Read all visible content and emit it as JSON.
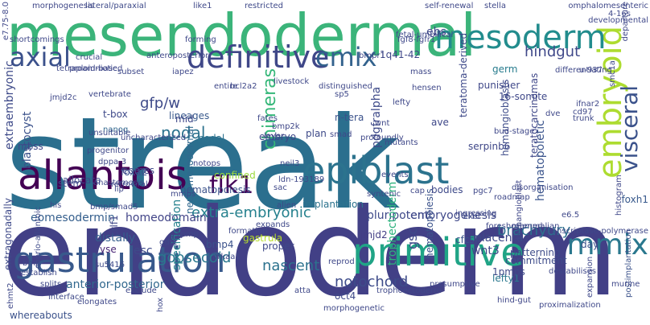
{
  "words": [
    {
      "text": "streak",
      "color": "#2b6f8e"
    },
    {
      "text": "endoderm",
      "color": "#424086"
    },
    {
      "text": "mesendodermal",
      "color": "#3bb47a"
    },
    {
      "text": "allantois",
      "color": "#440154"
    },
    {
      "text": "epiblast",
      "color": "#2c738e"
    },
    {
      "text": "primitive",
      "color": "#20a486"
    },
    {
      "text": "gastrulation",
      "color": "#38598c"
    },
    {
      "text": "definitive",
      "color": "#3f4788"
    },
    {
      "text": "embryoid",
      "color": "#addc30"
    },
    {
      "text": "visceral",
      "color": "#3b528b"
    },
    {
      "text": "mesoderm",
      "color": "#228c8d"
    },
    {
      "text": "axial",
      "color": "#3b518b"
    },
    {
      "text": "cmix",
      "color": "#33628d"
    },
    {
      "text": "flk1",
      "color": "#440256"
    },
    {
      "text": "mmix",
      "color": "#2a788e"
    },
    {
      "text": "nodal",
      "color": "#2c728e"
    },
    {
      "text": "gfp/w",
      "color": "#3e4a89"
    },
    {
      "text": "hindgut",
      "color": "#3f4889"
    },
    {
      "text": "extra-embryonic",
      "color": "#26818e"
    },
    {
      "text": "eomesodermin",
      "color": "#355f8d"
    },
    {
      "text": "homeodomain",
      "color": "#414487"
    },
    {
      "text": "goosecoid",
      "color": "#2a788e"
    },
    {
      "text": "nascent",
      "color": "#2c728e"
    },
    {
      "text": "notochord",
      "color": "#3e4c8a"
    },
    {
      "text": "anterior-posterior",
      "color": "#31688e"
    },
    {
      "text": "brachyury",
      "color": "#2d708e"
    },
    {
      "text": "chimeras",
      "color": "#35b779"
    },
    {
      "text": "pluripotent",
      "color": "#3e4989"
    },
    {
      "text": "embryogenesis",
      "color": "#3f4889"
    },
    {
      "text": "lefty1",
      "color": "#2a788e"
    },
    {
      "text": "esc",
      "color": "#3e4a89"
    },
    {
      "text": "distally",
      "color": "#355e8d"
    },
    {
      "text": "yse",
      "color": "#482576"
    },
    {
      "text": "blastocyst",
      "color": "#3b528b"
    },
    {
      "text": "extraembryonic",
      "color": "#3e4a89"
    },
    {
      "text": "patterning",
      "color": "#3e4c8a"
    },
    {
      "text": "implantation",
      "color": "#2c738e"
    },
    {
      "text": "hematopoietic",
      "color": "#3a548c"
    },
    {
      "text": "hematopoiesis",
      "color": "#3b528b"
    },
    {
      "text": "trophectoderm",
      "color": "#2db27d"
    },
    {
      "text": "specification",
      "color": "#26828e"
    },
    {
      "text": "pdgfralpha",
      "color": "#3e4a89"
    },
    {
      "text": "nodal",
      "color": "#2c728e"
    },
    {
      "text": "plan",
      "color": "#3e4a89"
    },
    {
      "text": "bmp4",
      "color": "#3b528b"
    },
    {
      "text": "jmjd2",
      "color": "#433e85"
    },
    {
      "text": "wnt3",
      "color": "#404688"
    },
    {
      "text": "gsc",
      "color": "#3e4989"
    },
    {
      "text": "cfcs",
      "color": "#3a538b"
    },
    {
      "text": "placenta",
      "color": "#3e4989"
    },
    {
      "text": "commitment",
      "color": "#3e4c8a"
    },
    {
      "text": "foxh1",
      "color": "#38598c"
    },
    {
      "text": "day",
      "color": "#3b518b"
    },
    {
      "text": "1pmps",
      "color": "#3e4a89"
    },
    {
      "text": "oct4",
      "color": "#3e4989"
    },
    {
      "text": "neuromesodermal",
      "color": "#31688e"
    },
    {
      "text": "confined",
      "color": "#9bd93c"
    },
    {
      "text": "embryo",
      "color": "#3f4788"
    },
    {
      "text": "foxa2",
      "color": "#3b528b"
    },
    {
      "text": "stem",
      "color": "#3f4788"
    },
    {
      "text": "lineages",
      "color": "#38598c"
    },
    {
      "text": "bodies",
      "color": "#3e4989"
    },
    {
      "text": "ebs",
      "color": "#3f4889"
    },
    {
      "text": "ave",
      "color": "#3f4889"
    },
    {
      "text": "germ",
      "color": "#287c8e"
    },
    {
      "text": "serpinb6",
      "color": "#3f4788"
    },
    {
      "text": "n-tera",
      "color": "#3b528b"
    },
    {
      "text": "layer",
      "color": "#3f4889"
    },
    {
      "text": "bmp2k",
      "color": "#3f4788"
    },
    {
      "text": "nanog",
      "color": "#31688e"
    },
    {
      "text": "mbss",
      "color": "#3f4889"
    },
    {
      "text": "t-box",
      "color": "#3e4989"
    },
    {
      "text": "mid",
      "color": "#3f4889"
    },
    {
      "text": "eomes",
      "color": "#3f4889"
    },
    {
      "text": "notops",
      "color": "#3f4788"
    },
    {
      "text": "neil3",
      "color": "#3e4a89"
    },
    {
      "text": "dppa-3",
      "color": "#3f4889"
    },
    {
      "text": "allocate",
      "color": "#3e4989"
    },
    {
      "text": "gastrula",
      "color": "#b8de29"
    },
    {
      "text": "hematopoiesis",
      "color": "#3b528b"
    },
    {
      "text": "hemangioblasts",
      "color": "#3e4c8a"
    },
    {
      "text": "teratoma-derived",
      "color": "#3e4989"
    },
    {
      "text": "teratocarcinomas",
      "color": "#3f4788"
    },
    {
      "text": "hemangioblast",
      "color": "#3f4788"
    },
    {
      "text": "16-somite",
      "color": "#3f4889"
    },
    {
      "text": "1q41-42",
      "color": "#3f4889"
    },
    {
      "text": "punisher",
      "color": "#3f4889"
    },
    {
      "text": "crlf1",
      "color": "#3f4788"
    },
    {
      "text": "extragonadally",
      "color": "#3e4989"
    },
    {
      "text": "chorio-allantoic",
      "color": "#3e4a89"
    },
    {
      "text": "whereabouts",
      "color": "#3b528b"
    },
    {
      "text": "proper",
      "color": "#3f4889"
    },
    {
      "text": "exel",
      "color": "#3e4a89"
    },
    {
      "text": "hind-gut",
      "color": "#3f4788"
    },
    {
      "text": "postimplantation",
      "color": "#3b528b"
    },
    {
      "text": "e6.5",
      "color": "#3f4889"
    },
    {
      "text": "mammalian",
      "color": "#3f4889"
    },
    {
      "text": "morphogenesis",
      "color": "#3f4788"
    },
    {
      "text": "lateral/paraxial",
      "color": "#3e4a89"
    },
    {
      "text": "like1",
      "color": "#3f4889"
    },
    {
      "text": "restricted",
      "color": "#3e4989"
    },
    {
      "text": "anteroposterior",
      "color": "#3f4889"
    },
    {
      "text": "iapez",
      "color": "#3f4889"
    },
    {
      "text": "bmpr1",
      "color": "#3f4788"
    },
    {
      "text": "1pmp",
      "color": "#3f4788"
    },
    {
      "text": "gdf1",
      "color": "#3e4989"
    },
    {
      "text": "su5416",
      "color": "#3e4a89"
    },
    {
      "text": "exclude",
      "color": "#3f4889"
    },
    {
      "text": "atta",
      "color": "#3f4889"
    },
    {
      "text": "trophoectoderm",
      "color": "#3f4889"
    },
    {
      "text": "presumptive",
      "color": "#3f4889"
    },
    {
      "text": "proximalization",
      "color": "#3f4889"
    },
    {
      "text": "morphogenetic",
      "color": "#3f4889"
    },
    {
      "text": "elongates",
      "color": "#3f4889"
    },
    {
      "text": "interface",
      "color": "#3e4989"
    },
    {
      "text": "foreshortened",
      "color": "#3f4889"
    },
    {
      "text": "ingressing",
      "color": "#3f4889"
    },
    {
      "text": "destabilises",
      "color": "#3f4889"
    },
    {
      "text": "expansion",
      "color": "#3f4889"
    },
    {
      "text": "histogram",
      "color": "#3f4889"
    },
    {
      "text": "transcriptase-polymerase",
      "color": "#3f4889"
    },
    {
      "text": "murine",
      "color": "#3f4889"
    },
    {
      "text": "stella",
      "color": "#3f4889"
    },
    {
      "text": "self-renewal",
      "color": "#3f4889"
    },
    {
      "text": "omphalomesenteric",
      "color": "#3f4889"
    },
    {
      "text": "departure",
      "color": "#3f4889"
    },
    {
      "text": "smc1a",
      "color": "#3f4889"
    },
    {
      "text": "developmental",
      "color": "#3f4889"
    },
    {
      "text": "forming",
      "color": "#3f4889"
    },
    {
      "text": "jmjd2c",
      "color": "#3f4889"
    },
    {
      "text": "fgf8-fgfr1",
      "color": "#3f4889"
    },
    {
      "text": "fetal-umbilical",
      "color": "#3f4889"
    },
    {
      "text": "livestock",
      "color": "#3f4889"
    },
    {
      "text": "bcl2a2",
      "color": "#3f4889"
    },
    {
      "text": "entire",
      "color": "#3f4889"
    },
    {
      "text": "vertebrate",
      "color": "#3f4889"
    },
    {
      "text": "progenitor",
      "color": "#3f4889"
    },
    {
      "text": "profoundly",
      "color": "#3f4889"
    },
    {
      "text": "distinguished",
      "color": "#3f4889"
    },
    {
      "text": "uncharacterized",
      "color": "#3f4889"
    },
    {
      "text": "ldn-193189",
      "color": "#3f4889"
    },
    {
      "text": "alien",
      "color": "#3f4889"
    },
    {
      "text": "anastomosis",
      "color": "#3f4889"
    },
    {
      "text": "retroviral",
      "color": "#3f4889"
    },
    {
      "text": "syntenic",
      "color": "#3f4889"
    },
    {
      "text": "disorganisation",
      "color": "#3f4889"
    },
    {
      "text": "differentiating",
      "color": "#3f4889"
    },
    {
      "text": "ifnar2",
      "color": "#3f4889"
    },
    {
      "text": "cd97",
      "color": "#3f4889"
    },
    {
      "text": "pgc7",
      "color": "#3f4889"
    },
    {
      "text": "cap",
      "color": "#3f4889"
    },
    {
      "text": "lip",
      "color": "#3f4889"
    },
    {
      "text": "mmps",
      "color": "#3f4889"
    },
    {
      "text": "reprod",
      "color": "#3f4889"
    },
    {
      "text": "prkaa1",
      "color": "#3f4889"
    },
    {
      "text": "e7.75-8.0",
      "color": "#3f4889"
    },
    {
      "text": "tetraploid-based",
      "color": "#3f4889"
    },
    {
      "text": "unsuitable",
      "color": "#3f4889"
    },
    {
      "text": "crucial",
      "color": "#3f4889"
    },
    {
      "text": "fates",
      "color": "#3f4889"
    },
    {
      "text": "events",
      "color": "#3f4889"
    },
    {
      "text": "mutants",
      "color": "#3f4889"
    },
    {
      "text": "lefty",
      "color": "#3f4889"
    },
    {
      "text": "bud-stage",
      "color": "#3f4889"
    },
    {
      "text": "trunk",
      "color": "#3f4889"
    },
    {
      "text": "u-937",
      "color": "#3f4889"
    },
    {
      "text": "dve",
      "color": "#3f4889"
    },
    {
      "text": "4-16s",
      "color": "#3f4889"
    },
    {
      "text": "shortcomings",
      "color": "#3f4889"
    },
    {
      "text": "formation",
      "color": "#3f4889"
    },
    {
      "text": "roadmap",
      "color": "#3f4889"
    },
    {
      "text": "expands",
      "color": "#3f4889"
    },
    {
      "text": "hox",
      "color": "#3f4889"
    },
    {
      "text": "establish",
      "color": "#3f4889"
    },
    {
      "text": "ehmt2",
      "color": "#3f4889"
    },
    {
      "text": "bmp/smad5",
      "color": "#3f4889"
    },
    {
      "text": "splits",
      "color": "#3f4889"
    },
    {
      "text": "proamniotic",
      "color": "#3f4889"
    },
    {
      "text": "subset",
      "color": "#3f4889"
    },
    {
      "text": "mass",
      "color": "#3f4889"
    },
    {
      "text": "smad",
      "color": "#3f4889"
    },
    {
      "text": "sp5",
      "color": "#3f4889"
    },
    {
      "text": "wnt",
      "color": "#3f4889"
    },
    {
      "text": "hensen",
      "color": "#3f4889"
    },
    {
      "text": "bmp",
      "color": "#3f4889"
    },
    {
      "text": "sac",
      "color": "#3f4889"
    },
    {
      "text": "his",
      "color": "#3f4889"
    }
  ]
}
